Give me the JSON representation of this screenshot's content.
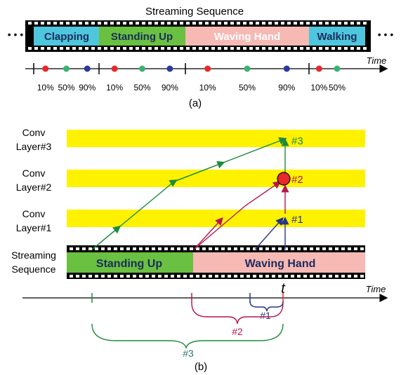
{
  "panel_a": {
    "title": "Streaming Sequence",
    "ellipsis_left": "• • •",
    "ellipsis_right": "• • •",
    "segments": [
      {
        "label": "Clapping",
        "color": "#4ec6de"
      },
      {
        "label": "Standing Up",
        "color": "#6ac040"
      },
      {
        "label": "Waving Hand",
        "color": "#f6b9b4"
      },
      {
        "label": "Walking",
        "color": "#4ec6de"
      }
    ],
    "time_label": "Time",
    "tick_labels": [
      "10%",
      "50%",
      "90%",
      "10%",
      "50%",
      "90%",
      "10%",
      "50%",
      "90%",
      "10%",
      "50%"
    ],
    "dot_colors": [
      "#e8282a",
      "#3cb371",
      "#2b3a9a"
    ],
    "caption": "(a)"
  },
  "panel_b": {
    "layers": [
      "Conv\nLayer#3",
      "Conv\nLayer#2",
      "Conv\nLayer#1"
    ],
    "layer_color": "#fff200",
    "stream_label": "Streaming\nSequence",
    "segments": [
      {
        "label": "Standing Up",
        "color": "#6ac040"
      },
      {
        "label": "Waving Hand",
        "color": "#f6b9b4"
      }
    ],
    "markers": [
      "#3",
      "#2",
      "#1"
    ],
    "t_label": "t",
    "time_label": "Time",
    "brace_labels": [
      "#1",
      "#2",
      "#3"
    ],
    "colors": {
      "green": "#1e8a3c",
      "magenta": "#b5174f",
      "blue": "#26348c",
      "teal": "#2e7a6e"
    },
    "caption": "(b)"
  }
}
